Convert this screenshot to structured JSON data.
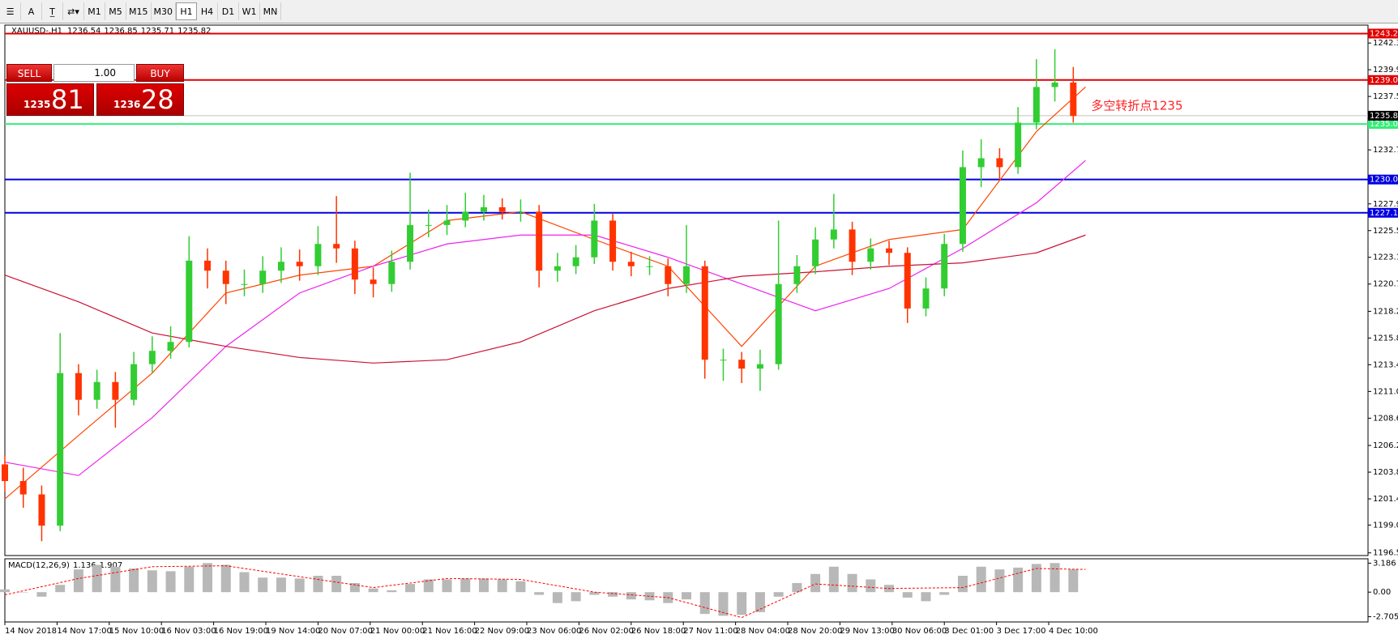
{
  "toolbar": {
    "font_button": "A",
    "timeframes": [
      "M1",
      "M5",
      "M15",
      "M30",
      "H1",
      "H4",
      "D1",
      "W1",
      "MN"
    ],
    "active": "H1"
  },
  "chart_data": {
    "type": "candlestick",
    "symbol": "XAUUSD-,H1",
    "ohlc_readout": [
      1236.54,
      1236.85,
      1235.71,
      1235.82
    ],
    "trade_panel": {
      "sell": "SELL",
      "buy": "BUY",
      "lot": "1.00",
      "bid_big": "1235",
      "bid_pips": "81",
      "ask_big": "1236",
      "ask_pips": "28"
    },
    "annotation": "多空转折点1235",
    "up_color": "#32cd32",
    "down_color": "#ff3300",
    "x": [
      0,
      6,
      12,
      18,
      24,
      30,
      36,
      42,
      48,
      54,
      60,
      66,
      72,
      78,
      84,
      90,
      96,
      102,
      108,
      114,
      120,
      126,
      132,
      138,
      144,
      150,
      156,
      162,
      168,
      174,
      180,
      186,
      192,
      198,
      204,
      210,
      216,
      222,
      228,
      234,
      240,
      246,
      252,
      258,
      264,
      270,
      276,
      282,
      288,
      294,
      300,
      306,
      312,
      318,
      324,
      330,
      336,
      342,
      348
    ],
    "open": [
      1204.5,
      1203.0,
      1201.8,
      1199.0,
      1212.7,
      1210.3,
      1211.9,
      1210.3,
      1213.5,
      1214.7,
      1215.5,
      1222.8,
      1221.9,
      1220.7,
      1220.7,
      1221.9,
      1222.7,
      1222.3,
      1224.3,
      1223.9,
      1221.1,
      1220.7,
      1222.7,
      1226.0,
      1226.0,
      1226.4,
      1227.2,
      1227.6,
      1227.2,
      1227.2,
      1221.9,
      1222.3,
      1223.1,
      1226.4,
      1222.7,
      1222.3,
      1222.3,
      1220.7,
      1222.3,
      1213.9,
      1213.9,
      1213.1,
      1213.5,
      1220.7,
      1222.3,
      1224.7,
      1225.6,
      1222.7,
      1223.9,
      1223.5,
      1218.5,
      1220.3,
      1224.3,
      1231.2,
      1232.0,
      1231.2,
      1235.2,
      1238.4,
      1238.8
    ],
    "high": [
      1205.3,
      1204.2,
      1202.6,
      1216.3,
      1213.5,
      1213.0,
      1212.8,
      1214.6,
      1216.0,
      1216.9,
      1225.0,
      1223.9,
      1222.8,
      1222.0,
      1223.2,
      1224.0,
      1223.8,
      1225.9,
      1228.6,
      1224.6,
      1222.2,
      1223.7,
      1230.7,
      1227.4,
      1227.8,
      1228.9,
      1228.7,
      1228.4,
      1228.3,
      1227.8,
      1223.5,
      1224.2,
      1227.9,
      1227.0,
      1223.6,
      1223.2,
      1223.0,
      1226.0,
      1222.8,
      1214.9,
      1214.6,
      1214.8,
      1226.4,
      1223.3,
      1225.8,
      1228.8,
      1226.3,
      1224.8,
      1224.6,
      1224.0,
      1221.3,
      1225.2,
      1232.7,
      1233.7,
      1232.9,
      1236.6,
      1240.9,
      1241.8,
      1240.2
    ],
    "low": [
      1202.0,
      1200.6,
      1197.6,
      1198.5,
      1208.9,
      1209.5,
      1207.8,
      1209.8,
      1212.7,
      1214.0,
      1215.0,
      1220.3,
      1218.9,
      1219.6,
      1219.9,
      1220.8,
      1221.0,
      1221.5,
      1222.6,
      1219.8,
      1219.5,
      1220.0,
      1222.0,
      1224.9,
      1225.1,
      1225.8,
      1226.4,
      1226.5,
      1226.3,
      1220.4,
      1220.9,
      1221.6,
      1222.5,
      1221.9,
      1221.4,
      1221.5,
      1219.6,
      1219.9,
      1212.2,
      1212.0,
      1211.8,
      1211.1,
      1213.0,
      1219.9,
      1221.6,
      1223.9,
      1221.5,
      1222.0,
      1222.4,
      1217.2,
      1217.8,
      1219.6,
      1223.6,
      1229.4,
      1230.1,
      1230.6,
      1234.6,
      1237.1,
      1235.2
    ],
    "close": [
      1203.0,
      1201.8,
      1199.0,
      1212.7,
      1210.3,
      1211.9,
      1210.3,
      1213.5,
      1214.7,
      1215.5,
      1222.8,
      1221.9,
      1220.7,
      1220.7,
      1221.9,
      1222.7,
      1222.3,
      1224.3,
      1223.9,
      1221.1,
      1220.7,
      1222.7,
      1226.0,
      1226.0,
      1226.4,
      1227.2,
      1227.6,
      1227.2,
      1227.2,
      1221.9,
      1222.3,
      1223.1,
      1226.4,
      1222.7,
      1222.3,
      1222.3,
      1220.7,
      1222.3,
      1213.9,
      1213.9,
      1213.1,
      1213.5,
      1220.7,
      1222.3,
      1224.7,
      1225.6,
      1222.7,
      1223.9,
      1223.5,
      1218.5,
      1220.3,
      1224.3,
      1231.2,
      1232.0,
      1231.2,
      1235.2,
      1238.4,
      1238.8,
      1235.8
    ],
    "overlay_x": [
      0,
      24,
      48,
      72,
      96,
      120,
      144,
      168,
      192,
      216,
      240,
      264,
      288,
      312,
      336,
      352
    ],
    "overlays": [
      {
        "color": "#ff4500",
        "values": [
          1201.4,
          1207.1,
          1212.7,
          1219.9,
          1221.5,
          1222.3,
          1226.4,
          1227.2,
          1224.7,
          1222.3,
          1215.1,
          1222.3,
          1224.7,
          1225.6,
          1234.4,
          1238.4
        ]
      },
      {
        "color": "#ee22ee",
        "values": [
          1204.7,
          1203.5,
          1208.7,
          1215.1,
          1219.9,
          1222.3,
          1224.3,
          1225.1,
          1225.1,
          1223.1,
          1220.7,
          1218.3,
          1220.3,
          1223.9,
          1228.0,
          1231.8
        ]
      },
      {
        "color": "#cc1133",
        "values": [
          1221.5,
          1219.1,
          1216.3,
          1215.1,
          1214.1,
          1213.6,
          1213.9,
          1215.5,
          1218.3,
          1220.3,
          1221.4,
          1221.8,
          1222.3,
          1222.6,
          1223.5,
          1225.1
        ]
      }
    ],
    "hlines": [
      {
        "value": 1243.2,
        "label": "1243.20",
        "color": "#e00000"
      },
      {
        "value": 1239.03,
        "label": "1239.03",
        "color": "#e00000"
      },
      {
        "value": 1235.08,
        "label": "1235.08",
        "color": "#33ee77"
      },
      {
        "value": 1230.09,
        "label": "1230.09",
        "color": "#0000e0"
      },
      {
        "value": 1227.1,
        "label": "1227.10",
        "color": "#0000e0"
      }
    ],
    "bid_line": {
      "value": 1235.82,
      "color": "#000000"
    },
    "xlim": [
      0,
      444
    ],
    "xticks": [
      {
        "value": 0,
        "label": "14 Nov 2018"
      },
      {
        "value": 17,
        "label": "14 Nov 17:00"
      },
      {
        "value": 34,
        "label": "15 Nov 10:00"
      },
      {
        "value": 51,
        "label": "16 Nov 03:00"
      },
      {
        "value": 68,
        "label": "16 Nov 19:00"
      },
      {
        "value": 85,
        "label": "19 Nov 14:00"
      },
      {
        "value": 102,
        "label": "20 Nov 07:00"
      },
      {
        "value": 119,
        "label": "21 Nov 00:00"
      },
      {
        "value": 136,
        "label": "21 Nov 16:00"
      },
      {
        "value": 153,
        "label": "22 Nov 09:00"
      },
      {
        "value": 170,
        "label": "23 Nov 06:00"
      },
      {
        "value": 187,
        "label": "26 Nov 02:00"
      },
      {
        "value": 204,
        "label": "26 Nov 18:00"
      },
      {
        "value": 221,
        "label": "27 Nov 11:00"
      },
      {
        "value": 238,
        "label": "28 Nov 04:00"
      },
      {
        "value": 255,
        "label": "28 Nov 20:00"
      },
      {
        "value": 272,
        "label": "29 Nov 13:00"
      },
      {
        "value": 289,
        "label": "30 Nov 06:00"
      },
      {
        "value": 306,
        "label": "3 Dec 01:00"
      },
      {
        "value": 323,
        "label": "3 Dec 17:00"
      },
      {
        "value": 340,
        "label": "4 Dec 10:00"
      }
    ],
    "ylim": [
      1196.31,
      1243.96
    ],
    "yticks": [
      1196.55,
      1199.05,
      {
        "value": 1201.4,
        "label": "1201.40"
      },
      {
        "value": 1203.8,
        "label": "1203.80"
      },
      {
        "value": 1206.2,
        "label": "1206.20"
      },
      1208.65,
      1211.05,
      1213.45,
      1215.85,
      1218.25,
      {
        "value": 1220.7,
        "label": "1220.70"
      },
      {
        "value": 1223.1,
        "label": "1223.10"
      },
      {
        "value": 1225.5,
        "label": "1225.50"
      },
      {
        "value": 1227.9,
        "label": "1227.90"
      },
      1232.75,
      1237.55,
      1239.95,
      1242.35
    ],
    "macd": {
      "title": "MACD(12,26,9)",
      "readout": [
        1.136,
        1.907
      ],
      "histogram_color": "#b8b8b8",
      "signal_color": "#ff0000",
      "histogram": [
        0.3,
        0.0,
        -0.5,
        0.8,
        2.5,
        3.0,
        2.8,
        2.6,
        2.4,
        2.3,
        2.8,
        3.2,
        3.0,
        2.2,
        1.6,
        1.6,
        1.5,
        1.8,
        1.8,
        1.0,
        0.4,
        0.2,
        0.9,
        1.4,
        1.4,
        1.5,
        1.5,
        1.4,
        1.2,
        -0.3,
        -1.2,
        -1.0,
        -0.3,
        -0.5,
        -0.8,
        -0.9,
        -1.2,
        -0.8,
        -2.4,
        -2.6,
        -2.5,
        -2.2,
        -0.5,
        1.0,
        2.0,
        2.8,
        2.0,
        1.4,
        0.8,
        -0.6,
        -1.0,
        -0.3,
        1.8,
        2.8,
        2.5,
        2.7,
        3.1,
        3.2,
        2.5
      ],
      "signal": [
        -0.3,
        1.5,
        2.8,
        2.9,
        1.7,
        0.5,
        1.5,
        1.4,
        0.0,
        -0.6,
        -2.8,
        0.9,
        0.4,
        0.5,
        2.6,
        2.5
      ],
      "ylim": [
        -3.28,
        3.67
      ],
      "yticks": [
        3.186,
        {
          "value": 0,
          "label": "0.00"
        },
        -2.705
      ]
    }
  }
}
